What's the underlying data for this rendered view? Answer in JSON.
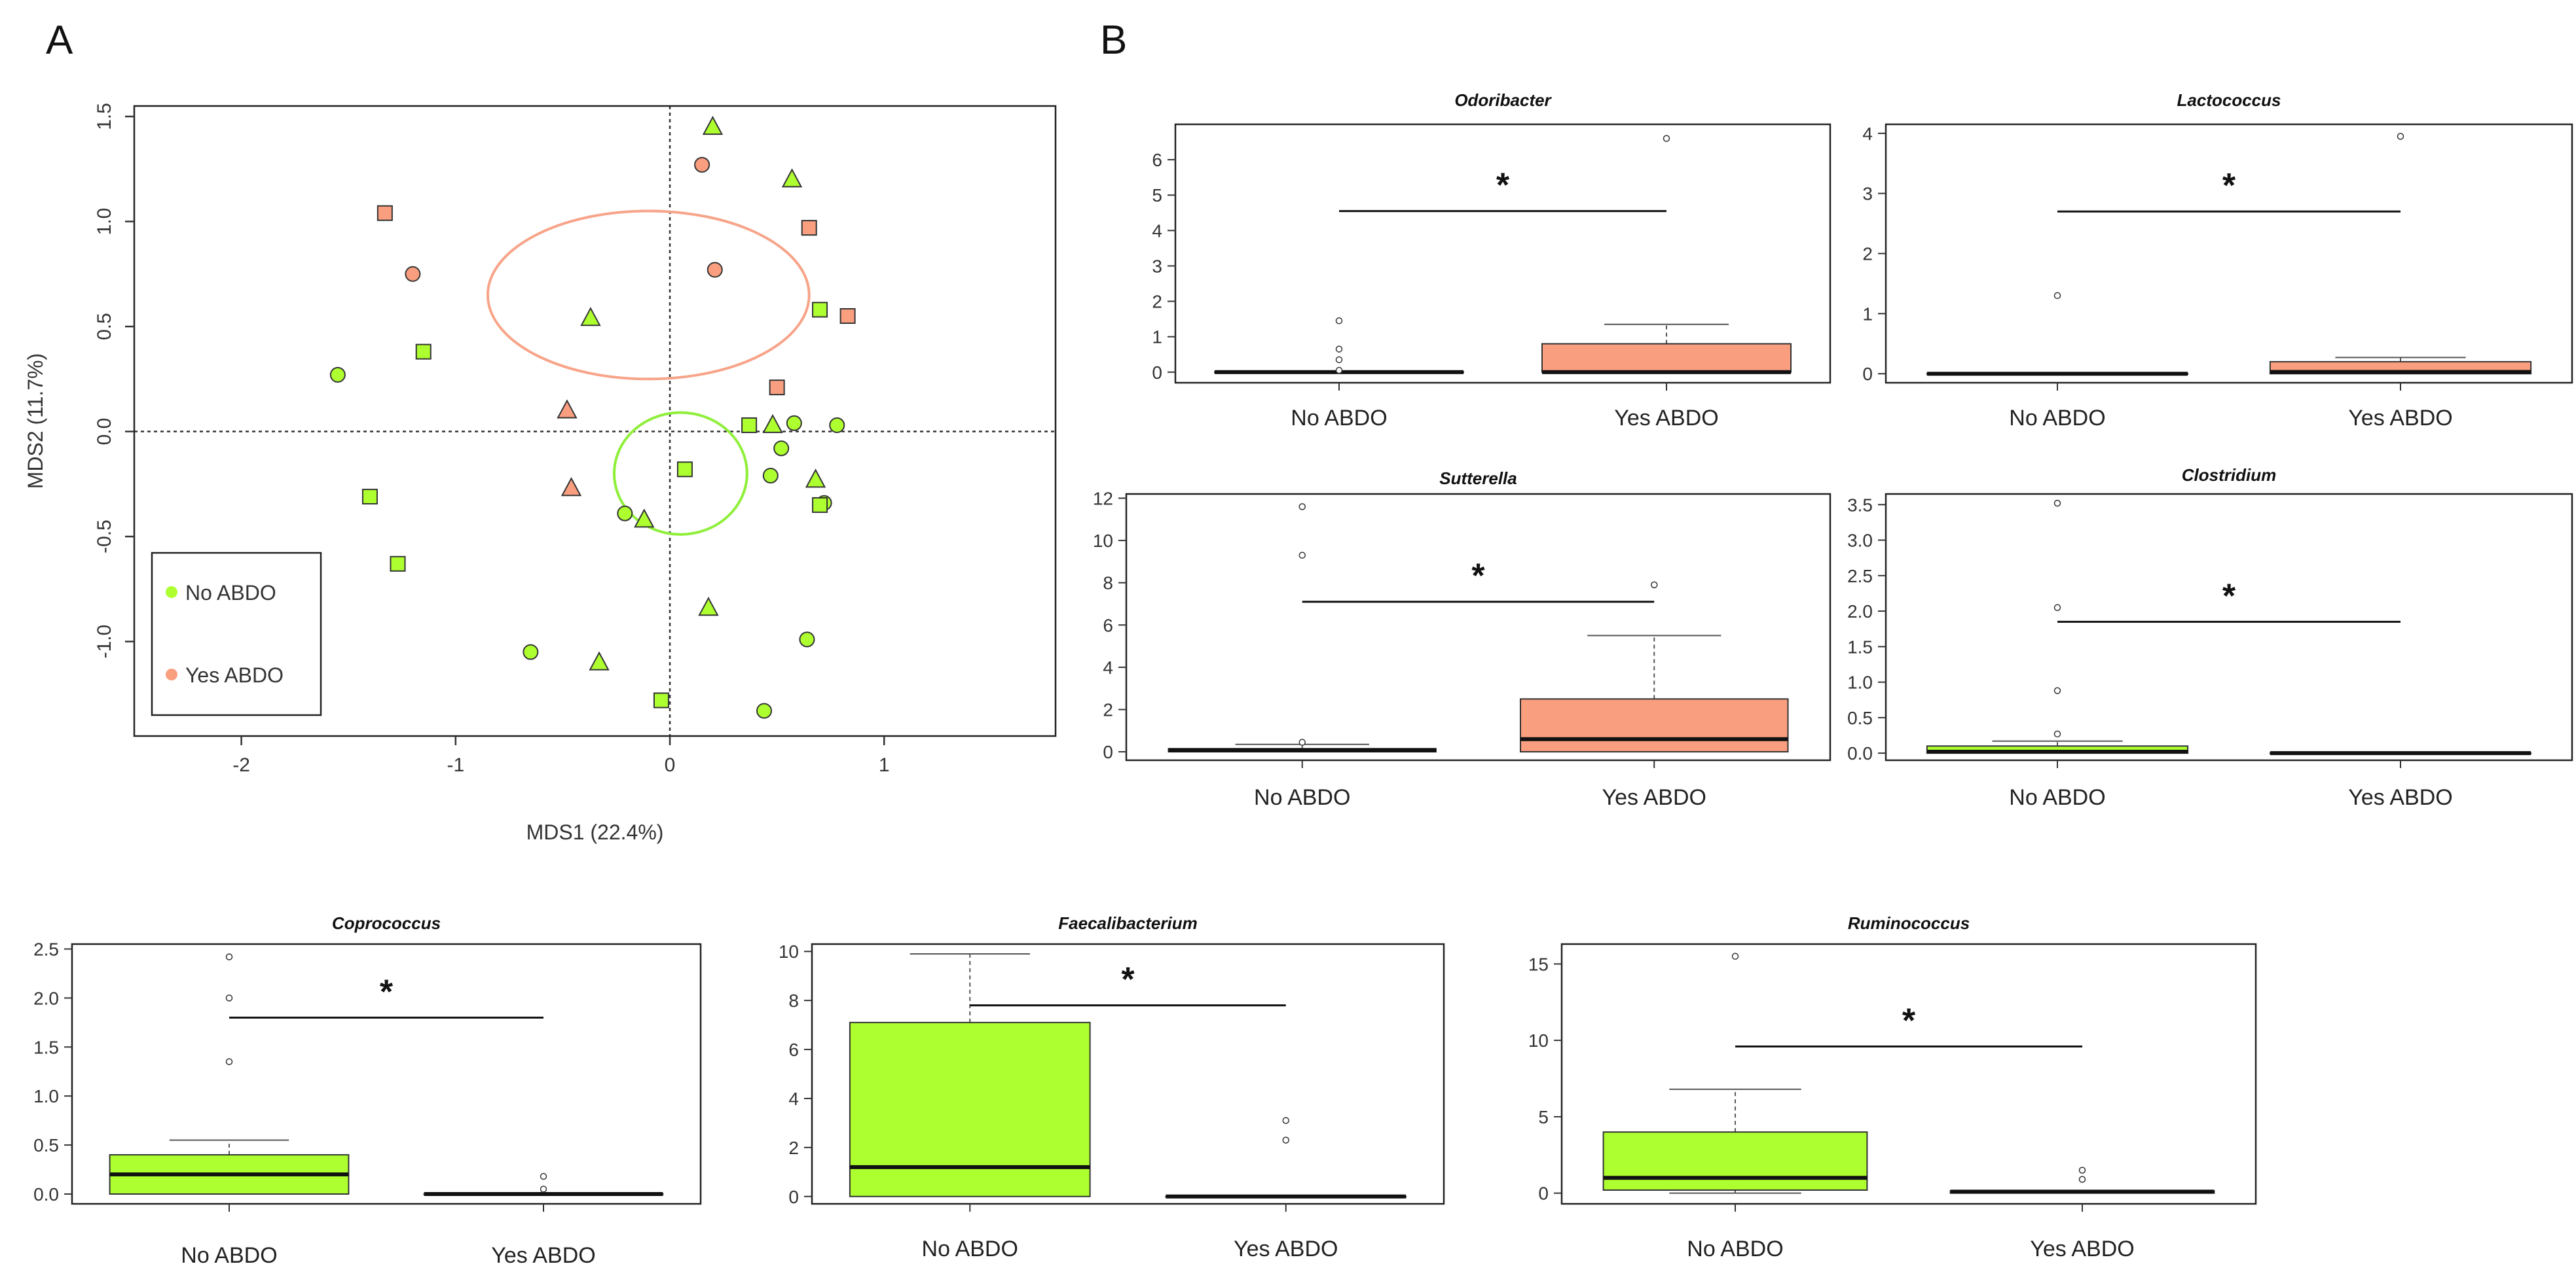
{
  "panels": {
    "a": "A",
    "b": "B"
  },
  "colors": {
    "no": "#adff2f",
    "yes": "#fa9e80",
    "no_ellipse": "#8fef3a",
    "yes_ellipse": "#f7a489",
    "stroke": "#333333"
  },
  "chart_data": [
    {
      "id": "mds",
      "type": "scatter",
      "title": "",
      "xlabel": "MDS1 (22.4%)",
      "ylabel": "MDS2 (11.7%)",
      "xlim": [
        -2.5,
        1.8
      ],
      "ylim": [
        -1.45,
        1.55
      ],
      "xticks": [
        -2,
        -1,
        0,
        1
      ],
      "yticks": [
        -1.0,
        -0.5,
        0.0,
        0.5,
        1.0,
        1.5
      ],
      "ytick_labels": [
        "-1.0",
        "-0.5",
        "0.0",
        "0.5",
        "1.0",
        "1.5"
      ],
      "legend": {
        "position": "bottom-left",
        "entries": [
          "No ABDO",
          "Yes ABDO"
        ]
      },
      "ellipses": [
        {
          "group": "yes",
          "cx": -0.1,
          "cy": 0.65,
          "rx": 0.75,
          "ry": 0.4
        },
        {
          "group": "no",
          "cx": 0.05,
          "cy": -0.2,
          "rx": 0.31,
          "ry": 0.29
        }
      ],
      "points": [
        {
          "x": 0.2,
          "y": 1.45,
          "shape": "triangle",
          "group": "no"
        },
        {
          "x": 0.57,
          "y": 1.2,
          "shape": "triangle",
          "group": "no"
        },
        {
          "x": 0.15,
          "y": 1.27,
          "shape": "circle",
          "group": "yes"
        },
        {
          "x": -1.33,
          "y": 1.04,
          "shape": "square",
          "group": "yes"
        },
        {
          "x": 0.65,
          "y": 0.97,
          "shape": "square",
          "group": "yes"
        },
        {
          "x": -1.2,
          "y": 0.75,
          "shape": "circle",
          "group": "yes"
        },
        {
          "x": 0.21,
          "y": 0.77,
          "shape": "circle",
          "group": "yes"
        },
        {
          "x": 0.7,
          "y": 0.58,
          "shape": "square",
          "group": "no"
        },
        {
          "x": 0.83,
          "y": 0.55,
          "shape": "square",
          "group": "yes"
        },
        {
          "x": -0.37,
          "y": 0.54,
          "shape": "triangle",
          "group": "no"
        },
        {
          "x": -1.15,
          "y": 0.38,
          "shape": "square",
          "group": "no"
        },
        {
          "x": -1.55,
          "y": 0.27,
          "shape": "circle",
          "group": "no"
        },
        {
          "x": 0.5,
          "y": 0.21,
          "shape": "square",
          "group": "yes"
        },
        {
          "x": -0.48,
          "y": 0.1,
          "shape": "triangle",
          "group": "yes"
        },
        {
          "x": 0.37,
          "y": 0.03,
          "shape": "square",
          "group": "no"
        },
        {
          "x": 0.48,
          "y": 0.03,
          "shape": "triangle",
          "group": "no"
        },
        {
          "x": 0.58,
          "y": 0.04,
          "shape": "circle",
          "group": "no"
        },
        {
          "x": 0.78,
          "y": 0.03,
          "shape": "circle",
          "group": "no"
        },
        {
          "x": 0.52,
          "y": -0.08,
          "shape": "circle",
          "group": "no"
        },
        {
          "x": 0.07,
          "y": -0.18,
          "shape": "square",
          "group": "no"
        },
        {
          "x": 0.47,
          "y": -0.21,
          "shape": "circle",
          "group": "no"
        },
        {
          "x": 0.68,
          "y": -0.23,
          "shape": "triangle",
          "group": "no"
        },
        {
          "x": -0.46,
          "y": -0.27,
          "shape": "triangle",
          "group": "yes"
        },
        {
          "x": -1.4,
          "y": -0.31,
          "shape": "square",
          "group": "no"
        },
        {
          "x": 0.72,
          "y": -0.34,
          "shape": "circle",
          "group": "no"
        },
        {
          "x": 0.7,
          "y": -0.35,
          "shape": "square",
          "group": "no"
        },
        {
          "x": -0.21,
          "y": -0.39,
          "shape": "circle",
          "group": "no"
        },
        {
          "x": -0.12,
          "y": -0.42,
          "shape": "triangle",
          "group": "no"
        },
        {
          "x": -1.27,
          "y": -0.63,
          "shape": "square",
          "group": "no"
        },
        {
          "x": 0.18,
          "y": -0.84,
          "shape": "triangle",
          "group": "no"
        },
        {
          "x": 0.64,
          "y": -0.99,
          "shape": "circle",
          "group": "no"
        },
        {
          "x": -0.65,
          "y": -1.05,
          "shape": "circle",
          "group": "no"
        },
        {
          "x": -0.33,
          "y": -1.1,
          "shape": "triangle",
          "group": "no"
        },
        {
          "x": -0.04,
          "y": -1.28,
          "shape": "square",
          "group": "no"
        },
        {
          "x": 0.44,
          "y": -1.33,
          "shape": "circle",
          "group": "no"
        }
      ]
    },
    {
      "id": "odoribacter",
      "type": "boxplot",
      "title": "Odoribacter",
      "categories": [
        "No ABDO",
        "Yes ABDO"
      ],
      "ylim": [
        -0.3,
        7.0
      ],
      "yticks": [
        0,
        1,
        2,
        3,
        4,
        5,
        6
      ],
      "ytick_labels": [
        "0",
        "1",
        "2",
        "3",
        "4",
        "5",
        "6"
      ],
      "groups": [
        {
          "name": "No ABDO",
          "color": "no",
          "q1": 0,
          "median": 0,
          "q3": 0,
          "whisker_low": 0,
          "whisker_high": 0,
          "outliers": [
            0.05,
            0.35,
            0.65,
            1.45
          ]
        },
        {
          "name": "Yes ABDO",
          "color": "yes",
          "q1": 0,
          "median": 0,
          "q3": 0.8,
          "whisker_low": 0,
          "whisker_high": 1.35,
          "outliers": [
            6.6
          ]
        }
      ],
      "significance": {
        "label": "*",
        "y": 4.55
      }
    },
    {
      "id": "lactococcus",
      "type": "boxplot",
      "title": "Lactococcus",
      "categories": [
        "No ABDO",
        "Yes ABDO"
      ],
      "ylim": [
        -0.15,
        4.15
      ],
      "yticks": [
        0,
        1,
        2,
        3,
        4
      ],
      "ytick_labels": [
        "0",
        "1",
        "2",
        "3",
        "4"
      ],
      "groups": [
        {
          "name": "No ABDO",
          "color": "no",
          "q1": 0,
          "median": 0,
          "q3": 0,
          "whisker_low": 0,
          "whisker_high": 0,
          "outliers": [
            1.3
          ]
        },
        {
          "name": "Yes ABDO",
          "color": "yes",
          "q1": 0,
          "median": 0.03,
          "q3": 0.2,
          "whisker_low": 0,
          "whisker_high": 0.27,
          "outliers": [
            3.95
          ]
        }
      ],
      "significance": {
        "label": "*",
        "y": 2.7
      }
    },
    {
      "id": "sutterella",
      "type": "boxplot",
      "title": "Sutterella",
      "categories": [
        "No ABDO",
        "Yes ABDO"
      ],
      "ylim": [
        -0.4,
        12.2
      ],
      "yticks": [
        0,
        2,
        4,
        6,
        8,
        10,
        12
      ],
      "ytick_labels": [
        "0",
        "2",
        "4",
        "6",
        "8",
        "10",
        "12"
      ],
      "groups": [
        {
          "name": "No ABDO",
          "color": "no",
          "q1": 0,
          "median": 0.07,
          "q3": 0.15,
          "whisker_low": 0,
          "whisker_high": 0.35,
          "outliers": [
            0.45,
            9.3,
            11.6
          ]
        },
        {
          "name": "Yes ABDO",
          "color": "yes",
          "q1": 0,
          "median": 0.6,
          "q3": 2.5,
          "whisker_low": 0,
          "whisker_high": 5.5,
          "outliers": [
            7.9
          ]
        }
      ],
      "significance": {
        "label": "*",
        "y": 7.1
      }
    },
    {
      "id": "clostridium",
      "type": "boxplot",
      "title": "Clostridium",
      "categories": [
        "No ABDO",
        "Yes ABDO"
      ],
      "ylim": [
        -0.1,
        3.65
      ],
      "yticks": [
        0,
        0.5,
        1,
        1.5,
        2,
        2.5,
        3,
        3.5
      ],
      "ytick_labels": [
        "0.0",
        "0.5",
        "1.0",
        "1.5",
        "2.0",
        "2.5",
        "3.0",
        "3.5"
      ],
      "groups": [
        {
          "name": "No ABDO",
          "color": "no",
          "q1": 0,
          "median": 0.02,
          "q3": 0.1,
          "whisker_low": 0,
          "whisker_high": 0.17,
          "outliers": [
            0.27,
            0.88,
            2.05,
            3.52
          ]
        },
        {
          "name": "Yes ABDO",
          "color": "yes",
          "q1": 0,
          "median": 0,
          "q3": 0,
          "whisker_low": 0,
          "whisker_high": 0,
          "outliers": []
        }
      ],
      "significance": {
        "label": "*",
        "y": 1.85
      }
    },
    {
      "id": "coprococcus",
      "type": "boxplot",
      "title": "Coprococcus",
      "categories": [
        "No ABDO",
        "Yes ABDO"
      ],
      "ylim": [
        -0.1,
        2.55
      ],
      "yticks": [
        0,
        0.5,
        1,
        1.5,
        2,
        2.5
      ],
      "ytick_labels": [
        "0.0",
        "0.5",
        "1.0",
        "1.5",
        "2.0",
        "2.5"
      ],
      "groups": [
        {
          "name": "No ABDO",
          "color": "no",
          "q1": 0,
          "median": 0.2,
          "q3": 0.4,
          "whisker_low": 0,
          "whisker_high": 0.55,
          "outliers": [
            1.35,
            2.0,
            2.42
          ]
        },
        {
          "name": "Yes ABDO",
          "color": "yes",
          "q1": 0,
          "median": 0,
          "q3": 0,
          "whisker_low": 0,
          "whisker_high": 0,
          "outliers": [
            0.05,
            0.18
          ]
        }
      ],
      "significance": {
        "label": "*",
        "y": 1.8
      }
    },
    {
      "id": "faecalibacterium",
      "type": "boxplot",
      "title": "Faecalibacterium",
      "categories": [
        "No ABDO",
        "Yes ABDO"
      ],
      "ylim": [
        -0.3,
        10.3
      ],
      "yticks": [
        0,
        2,
        4,
        6,
        8,
        10
      ],
      "ytick_labels": [
        "0",
        "2",
        "4",
        "6",
        "8",
        "10"
      ],
      "groups": [
        {
          "name": "No ABDO",
          "color": "no",
          "q1": 0,
          "median": 1.2,
          "q3": 7.1,
          "whisker_low": 0,
          "whisker_high": 9.9,
          "outliers": []
        },
        {
          "name": "Yes ABDO",
          "color": "yes",
          "q1": 0,
          "median": 0,
          "q3": 0,
          "whisker_low": 0,
          "whisker_high": 0,
          "outliers": [
            2.3,
            3.1
          ]
        }
      ],
      "significance": {
        "label": "*",
        "y": 7.8
      }
    },
    {
      "id": "ruminococcus",
      "type": "boxplot",
      "title": "Ruminococcus",
      "categories": [
        "No ABDO",
        "Yes ABDO"
      ],
      "ylim": [
        -0.7,
        16.3
      ],
      "yticks": [
        0,
        5,
        10,
        15
      ],
      "ytick_labels": [
        "0",
        "5",
        "10",
        "15"
      ],
      "groups": [
        {
          "name": "No ABDO",
          "color": "no",
          "q1": 0.2,
          "median": 1.0,
          "q3": 4.0,
          "whisker_low": 0,
          "whisker_high": 6.8,
          "outliers": [
            15.5
          ]
        },
        {
          "name": "Yes ABDO",
          "color": "yes",
          "q1": 0,
          "median": 0.1,
          "q3": 0.15,
          "whisker_low": 0,
          "whisker_high": 0.15,
          "outliers": [
            0.9,
            1.5
          ]
        }
      ],
      "significance": {
        "label": "*",
        "y": 9.6
      }
    }
  ]
}
